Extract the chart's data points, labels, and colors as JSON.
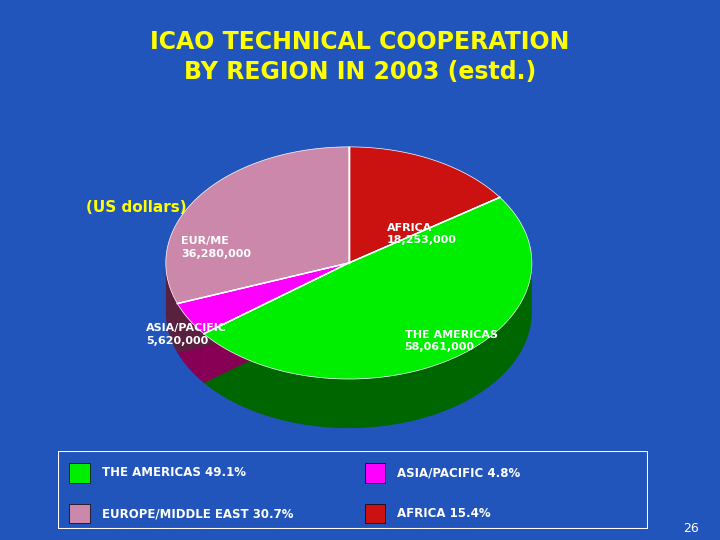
{
  "title": "ICAO TECHNICAL COOPERATION\nBY REGION IN 2003 (estd.)",
  "subtitle": "(US dollars)",
  "slices": [
    {
      "label": "THE AMERICAS",
      "value": 58061000,
      "pct": 49.1,
      "color": "#00EE00",
      "shadow_color": "#006600"
    },
    {
      "label": "EUROPE/MIDDLE EAST",
      "value": 36280000,
      "pct": 30.7,
      "color": "#CC88AA",
      "shadow_color": "#5A2040"
    },
    {
      "label": "AFRICA",
      "value": 18253000,
      "pct": 15.4,
      "color": "#CC1111",
      "shadow_color": "#660000"
    },
    {
      "label": "ASIA/PACIFIC",
      "value": 5620000,
      "pct": 4.8,
      "color": "#FF00FF",
      "shadow_color": "#880055"
    }
  ],
  "legend_items": [
    {
      "label": "THE AMERICAS 49.1%",
      "color": "#00EE00"
    },
    {
      "label": "ASIA/PACIFIC 4.8%",
      "color": "#FF00FF"
    },
    {
      "label": "EUROPE/MIDDLE EAST 30.7%",
      "color": "#CC88AA"
    },
    {
      "label": "AFRICA 15.4%",
      "color": "#CC1111"
    }
  ],
  "bg_color": "#2255BB",
  "title_color": "#FFFF00",
  "subtitle_color": "#FFFF00",
  "label_color": "#FFFFFF",
  "divider_color": "#FFD700",
  "page_num": "26"
}
